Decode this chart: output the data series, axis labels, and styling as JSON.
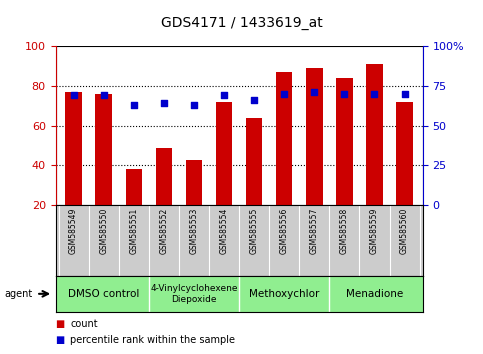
{
  "title": "GDS4171 / 1433619_at",
  "samples": [
    "GSM585549",
    "GSM585550",
    "GSM585551",
    "GSM585552",
    "GSM585553",
    "GSM585554",
    "GSM585555",
    "GSM585556",
    "GSM585557",
    "GSM585558",
    "GSM585559",
    "GSM585560"
  ],
  "count_values": [
    77,
    76,
    38,
    49,
    43,
    72,
    64,
    87,
    89,
    84,
    91,
    72
  ],
  "percentile_values": [
    69,
    69,
    63,
    64,
    63,
    69,
    66,
    70,
    71,
    70,
    70,
    70
  ],
  "bar_color": "#cc0000",
  "dot_color": "#0000cc",
  "ylim_left": [
    20,
    100
  ],
  "ylim_right": [
    0,
    100
  ],
  "yticks_left": [
    20,
    40,
    60,
    80,
    100
  ],
  "ytick_labels_right": [
    "0",
    "25",
    "50",
    "75",
    "100%"
  ],
  "ytick_vals_right": [
    0,
    25,
    50,
    75,
    100
  ],
  "grid_values": [
    40,
    60,
    80
  ],
  "agents": [
    {
      "label": "DMSO control",
      "start": 0,
      "end": 3
    },
    {
      "label": "4-Vinylcyclohexene\nDiepoxide",
      "start": 3,
      "end": 6
    },
    {
      "label": "Methoxychlor",
      "start": 6,
      "end": 9
    },
    {
      "label": "Menadione",
      "start": 9,
      "end": 12
    }
  ],
  "legend_count_label": "count",
  "legend_percentile_label": "percentile rank within the sample",
  "background_color": "#ffffff",
  "left_tick_color": "#cc0000",
  "right_tick_color": "#0000cc",
  "tick_area_color": "#cccccc",
  "agent_area_color": "#90ee90"
}
